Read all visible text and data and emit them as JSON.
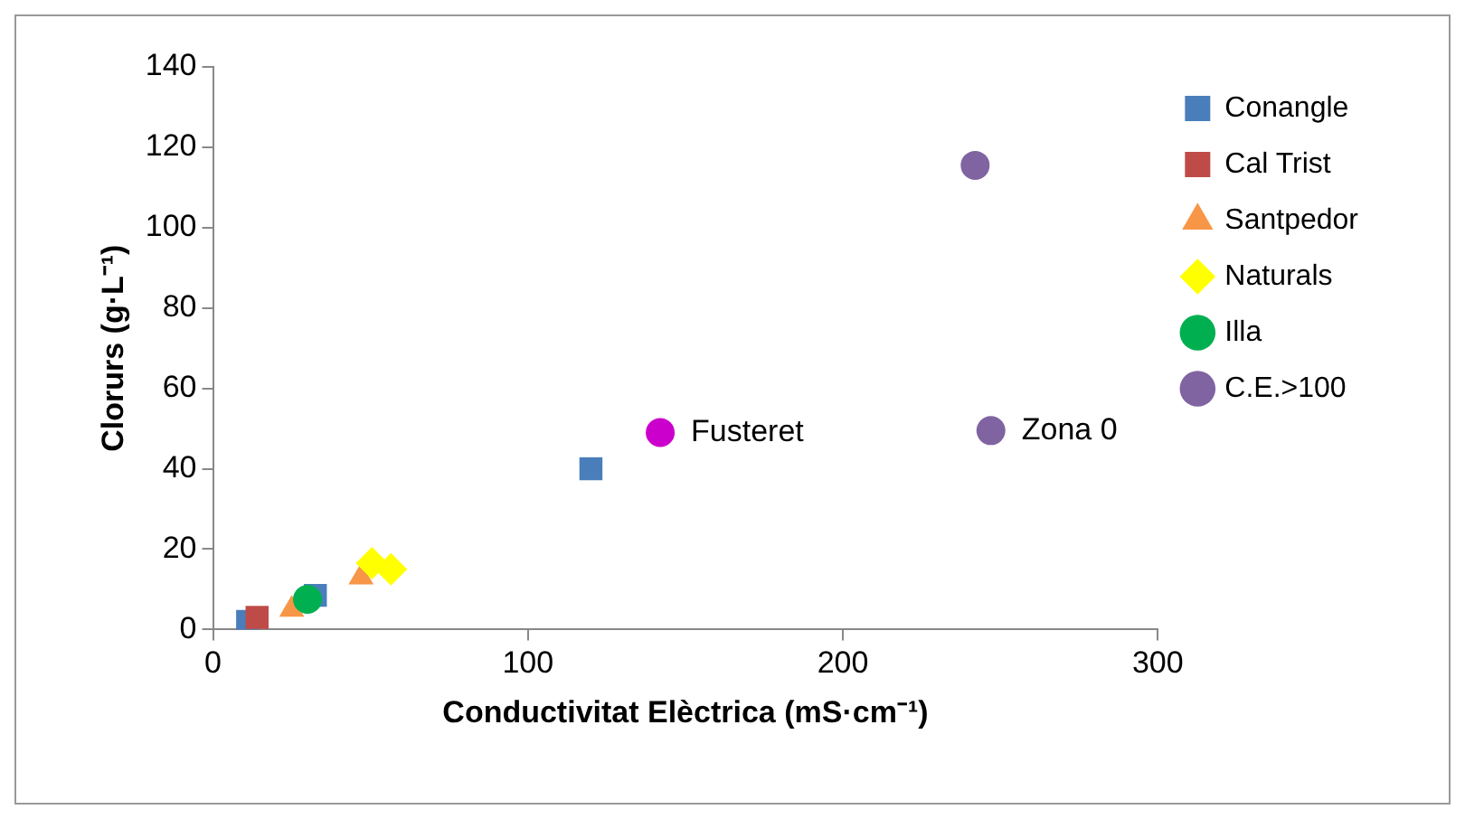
{
  "chart_data": {
    "type": "scatter",
    "xlabel": "Conductivitat Elèctrica (mS·cm⁻¹)",
    "ylabel": "Clorurs (g·L⁻¹)",
    "xlim": [
      0,
      300
    ],
    "xticks": [
      0,
      100,
      200,
      300
    ],
    "ylim": [
      0,
      140
    ],
    "yticks": [
      0,
      20,
      40,
      60,
      80,
      100,
      120,
      140
    ],
    "grid": false,
    "legend": "right",
    "series": [
      {
        "name": "Conangle",
        "color": "#4a7ebb",
        "marker": "square",
        "x": [
          120,
          32.5,
          11
        ],
        "values": [
          40,
          8.5,
          2
        ]
      },
      {
        "name": "Cal Trist",
        "color": "#be4b48",
        "marker": "square",
        "x": [
          14
        ],
        "values": [
          3
        ]
      },
      {
        "name": "Santpedor",
        "color": "#f79646",
        "marker": "triangle",
        "x": [
          25,
          47
        ],
        "values": [
          5,
          13
        ]
      },
      {
        "name": "Naturals",
        "color": "#ffff00",
        "marker": "diamond",
        "x": [
          50.5,
          56.5
        ],
        "values": [
          16.5,
          15
        ]
      },
      {
        "name": "Illa",
        "color": "#00b050",
        "marker": "circle",
        "x": [
          30
        ],
        "values": [
          7.5
        ]
      },
      {
        "name": "C.E.>100",
        "color": "#8064a2",
        "marker": "circle",
        "x": [
          242
        ],
        "values": [
          115.5
        ]
      },
      {
        "color": "#cc00cc",
        "marker": "circle",
        "x": [
          142
        ],
        "values": [
          49
        ]
      },
      {
        "color": "#8064a2",
        "marker": "circle",
        "x": [
          247
        ],
        "values": [
          49.5
        ]
      }
    ],
    "annotations": [
      {
        "text": "Fusteret",
        "x": 142,
        "y": 49
      },
      {
        "text": "Zona 0",
        "x": 247,
        "y": 49.5
      }
    ]
  }
}
